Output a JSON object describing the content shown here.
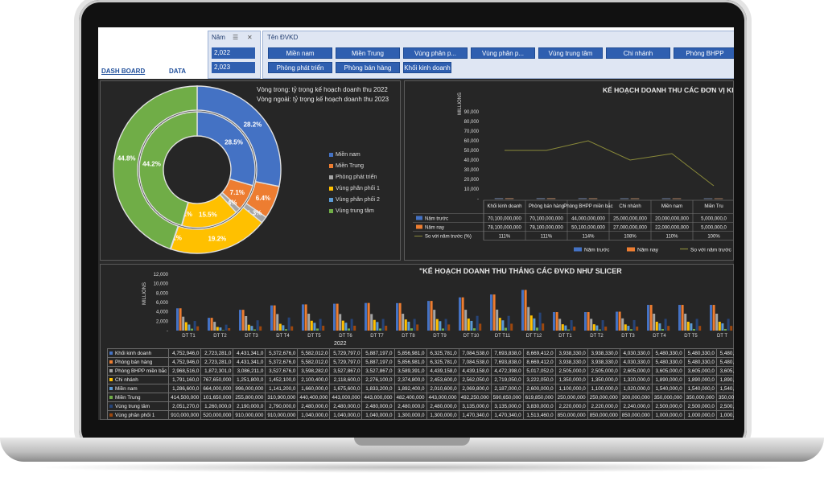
{
  "nav": {
    "dashboard": "DASH BOARD",
    "data": "DATA"
  },
  "year_slicer": {
    "header": "Năm",
    "items": [
      "2,022",
      "2,023"
    ]
  },
  "unit_slicer": {
    "header": "Tên ĐVKD",
    "items": [
      "Miền nam",
      "Miền Trung",
      "Vùng phân p...",
      "Vùng phân p...",
      "Vùng trung tâm",
      "Chi nhánh",
      "Phòng BHPP",
      "Phòng phát triển",
      "Phòng bán hàng",
      "Khối kinh doanh"
    ]
  },
  "pie": {
    "inner_caption": "Vòng trong: tỷ trọng kế hoạch doanh thu 2022",
    "outer_caption": "Vòng ngoài: tỷ trọng kế hoạch doanh thu 2023",
    "legend": [
      {
        "name": "Miền nam",
        "color": "#4472c4"
      },
      {
        "name": "Miền Trung",
        "color": "#ed7d31"
      },
      {
        "name": "Phòng phát triển",
        "color": "#a5a5a5"
      },
      {
        "name": "Vùng phân phối 1",
        "color": "#ffc000"
      },
      {
        "name": "Vùng phân phối 2",
        "color": "#5b9bd5"
      },
      {
        "name": "Vùng trung tâm",
        "color": "#70ad47"
      }
    ],
    "chart_data": {
      "type": "pie",
      "outer_2023": [
        {
          "name": "Miền nam",
          "value": 28.2
        },
        {
          "name": "Miền Trung",
          "value": 6.4
        },
        {
          "name": "Phòng phát triển",
          "value": 1.3
        },
        {
          "name": "Vùng phân phối 1",
          "value": 19.2
        },
        {
          "name": "Vùng phân phối 2",
          "value": 0.1
        },
        {
          "name": "Vùng trung tâm",
          "value": 44.8
        }
      ],
      "inner_2022": [
        {
          "name": "Miền nam",
          "value": 28.5
        },
        {
          "name": "Miền Trung",
          "value": 7.1
        },
        {
          "name": "Phòng phát triển",
          "value": 1.4
        },
        {
          "name": "Vùng phân phối 1",
          "value": 15.5
        },
        {
          "name": "Vùng phân phối 2",
          "value": 0.1
        },
        {
          "name": "Vùng trung tâm",
          "value": 44.2
        }
      ],
      "labels_outer": [
        "28.2%",
        "6.4%",
        "1.3%",
        "19.2%",
        "0.1%",
        "44.8%"
      ],
      "labels_inner": [
        "28.5%",
        "7.1%",
        "1.4%",
        "15.5%",
        "0.1%",
        "44.2%"
      ]
    }
  },
  "bar": {
    "title": "KẾ HOẠCH DOANH THU CÁC ĐƠN VỊ KINH D",
    "ylabel": "MILLIONS",
    "yticks": [
      "90,000",
      "80,000",
      "70,000",
      "60,000",
      "50,000",
      "40,000",
      "30,000",
      "20,000",
      "10,000",
      "-"
    ],
    "legend": [
      "Năm trước",
      "Năm nay",
      "So với năm trước (%)"
    ],
    "chart_data": {
      "type": "bar",
      "categories": [
        "Khối kinh doanh",
        "Phòng bán hàng",
        "Phòng BHPP miền bắc",
        "Chi nhánh",
        "Miền nam",
        "Miền Tru"
      ],
      "series": [
        {
          "name": "Năm trước",
          "values": [
            70100000,
            70100000,
            44000000,
            25000000,
            20000000,
            5000000
          ]
        },
        {
          "name": "Năm nay",
          "values": [
            78100000,
            78100000,
            50100000,
            27000000,
            22000000,
            5000000
          ]
        }
      ],
      "ratio": [
        111,
        111,
        114,
        108,
        110,
        100
      ],
      "ylim": [
        0,
        90000
      ]
    },
    "table": {
      "rows": [
        {
          "label": "Năm trước",
          "cells": [
            "70,100,000,000",
            "70,100,000,000",
            "44,000,000,000",
            "25,000,000,000",
            "20,000,000,000",
            "5,000,000,0"
          ]
        },
        {
          "label": "Năm nay",
          "cells": [
            "78,100,000,000",
            "78,100,000,000",
            "50,100,000,000",
            "27,000,000,000",
            "22,000,000,000",
            "5,000,000,0"
          ]
        },
        {
          "label": "So với năm trước (%)",
          "cells": [
            "111%",
            "111%",
            "114%",
            "108%",
            "110%",
            "100%"
          ]
        }
      ]
    },
    "colors": {
      "prev": "#4472c4",
      "cur": "#ed7d31",
      "line": "#8a8a3a"
    }
  },
  "monthly": {
    "title": "\"KẾ HOẠCH DOANH THU THÁNG CÁC ĐVKD NHƯ SLICER",
    "ylabel": "MILLIONS",
    "yticks": [
      "12,000",
      "10,000",
      "8,000",
      "6,000",
      "4,000",
      "2,000",
      "-"
    ],
    "year_label": "2022",
    "months": [
      "DT T1",
      "DT T2",
      "DT T3",
      "DT T4",
      "DT T5",
      "DT T6",
      "DT T7",
      "DT T8",
      "DT T9",
      "DT T10",
      "DT T11",
      "DT T12",
      "DT T1",
      "DT T2",
      "DT T3",
      "DT T4",
      "DT T5",
      "DT T"
    ],
    "rows": [
      {
        "label": "Khối kinh doanh",
        "color": "#4472c4",
        "cells": [
          "4,752,946,0",
          "2,723,281,0",
          "4,431,341,0",
          "5,372,676,0",
          "5,582,012,0",
          "5,729,797,0",
          "5,887,197,0",
          "5,856,981,0",
          "6,325,781,0",
          "7,084,538,0",
          "7,693,838,0",
          "8,669,412,0",
          "3,938,330,0",
          "3,938,330,0",
          "4,030,330,0",
          "5,480,330,0",
          "5,480,330,0",
          "5,480,"
        ]
      },
      {
        "label": "Phòng bán hàng",
        "color": "#ed7d31",
        "cells": [
          "4,752,946,0",
          "2,723,281,0",
          "4,431,341,0",
          "5,372,676,0",
          "5,582,012,0",
          "5,729,797,0",
          "5,887,197,0",
          "5,856,981,0",
          "6,325,781,0",
          "7,084,538,0",
          "7,693,838,0",
          "8,669,412,0",
          "3,938,330,0",
          "3,938,330,0",
          "4,030,330,0",
          "5,480,330,0",
          "5,480,330,0",
          "5,480,"
        ]
      },
      {
        "label": "Phòng BHPP miền bắc",
        "color": "#a5a5a5",
        "cells": [
          "2,968,516,0",
          "1,872,301,0",
          "3,086,211,0",
          "3,527,676,0",
          "3,598,282,0",
          "3,527,867,0",
          "3,527,867,0",
          "3,589,391,0",
          "4,439,158,0",
          "4,439,158,0",
          "4,472,398,0",
          "5,017,052,0",
          "2,505,000,0",
          "2,505,000,0",
          "2,605,000,0",
          "3,605,000,0",
          "3,605,000,0",
          "3,605,"
        ]
      },
      {
        "label": "Chi nhánh",
        "color": "#ffc000",
        "cells": [
          "1,791,160,0",
          "767,650,000",
          "1,251,800,0",
          "1,452,100,0",
          "2,100,400,0",
          "2,118,600,0",
          "2,276,100,0",
          "2,374,800,0",
          "2,453,600,0",
          "2,562,050,0",
          "2,719,050,0",
          "3,222,050,0",
          "1,350,000,0",
          "1,350,000,0",
          "1,320,000,0",
          "1,890,000,0",
          "1,890,000,0",
          "1,890,"
        ]
      },
      {
        "label": "Miền nam",
        "color": "#5b9bd5",
        "cells": [
          "1,286,600,0",
          "664,000,000",
          "996,000,000",
          "1,141,200,0",
          "1,660,000,0",
          "1,675,600,0",
          "1,833,200,0",
          "1,892,400,0",
          "2,010,600,0",
          "2,069,800,0",
          "2,187,000,0",
          "2,600,000,0",
          "1,100,000,0",
          "1,100,000,0",
          "1,020,000,0",
          "1,540,000,0",
          "1,540,000,0",
          "1,540,"
        ]
      },
      {
        "label": "Miền Trung",
        "color": "#70ad47",
        "cells": [
          "414,500,000",
          "101,650,000",
          "255,800,000",
          "310,900,000",
          "440,400,000",
          "443,000,000",
          "443,000,000",
          "482,400,000",
          "443,000,000",
          "492,250,000",
          "590,650,000",
          "619,850,000",
          "250,000,000",
          "250,000,000",
          "300,000,000",
          "350,000,000",
          "350,000,000",
          "350,00"
        ]
      },
      {
        "label": "Vùng trung tâm",
        "color": "#264478",
        "cells": [
          "2,051,270,0",
          "1,260,000,0",
          "2,190,000,0",
          "2,790,000,0",
          "2,480,000,0",
          "2,480,000,0",
          "2,480,000,0",
          "2,480,000,0",
          "2,480,000,0",
          "3,135,000,0",
          "3,135,000,0",
          "3,830,000,0",
          "2,220,000,0",
          "2,220,000,0",
          "2,240,000,0",
          "2,500,000,0",
          "2,500,000,0",
          "2,500,"
        ]
      },
      {
        "label": "Vùng phân phối 1",
        "color": "#9e480e",
        "cells": [
          "910,000,000",
          "520,000,000",
          "910,000,000",
          "910,000,000",
          "1,040,000,0",
          "1,040,000,0",
          "1,040,000,0",
          "1,300,000,0",
          "1,300,000,0",
          "1,470,340,0",
          "1,470,340,0",
          "1,513,460,0",
          "850,000,000",
          "850,000,000",
          "850,000,000",
          "1,000,000,0",
          "1,000,000,0",
          "1,000,"
        ]
      }
    ],
    "chart_data": {
      "type": "bar",
      "ylim": [
        0,
        12000
      ],
      "series_note": "values in millions, derived from table rows",
      "series": [
        {
          "name": "Khối kinh doanh",
          "values": [
            4753,
            2723,
            4431,
            5373,
            5582,
            5730,
            5887,
            5857,
            6326,
            7085,
            7694,
            8669,
            3938,
            3938,
            4030,
            5480,
            5480,
            5480
          ]
        },
        {
          "name": "Phòng bán hàng",
          "values": [
            4753,
            2723,
            4431,
            5373,
            5582,
            5730,
            5887,
            5857,
            6326,
            7085,
            7694,
            8669,
            3938,
            3938,
            4030,
            5480,
            5480,
            5480
          ]
        },
        {
          "name": "Phòng BHPP miền bắc",
          "values": [
            2969,
            1872,
            3086,
            3528,
            3598,
            3528,
            3528,
            3589,
            4439,
            4439,
            4472,
            5017,
            2505,
            2505,
            2605,
            3605,
            3605,
            3605
          ]
        },
        {
          "name": "Chi nhánh",
          "values": [
            1791,
            768,
            1252,
            1452,
            2100,
            2119,
            2276,
            2375,
            2454,
            2562,
            2719,
            3222,
            1350,
            1350,
            1320,
            1890,
            1890,
            1890
          ]
        },
        {
          "name": "Miền nam",
          "values": [
            1287,
            664,
            996,
            1141,
            1660,
            1676,
            1833,
            1892,
            2011,
            2070,
            2187,
            2600,
            1100,
            1100,
            1020,
            1540,
            1540,
            1540
          ]
        },
        {
          "name": "Miền Trung",
          "values": [
            415,
            102,
            256,
            311,
            440,
            443,
            443,
            482,
            443,
            492,
            591,
            620,
            250,
            250,
            300,
            350,
            350,
            350
          ]
        },
        {
          "name": "Vùng trung tâm",
          "values": [
            2051,
            1260,
            2190,
            2790,
            2480,
            2480,
            2480,
            2480,
            2480,
            3135,
            3135,
            3830,
            2220,
            2220,
            2240,
            2500,
            2500,
            2500
          ]
        },
        {
          "name": "Vùng phân phối 1",
          "values": [
            910,
            520,
            910,
            910,
            1040,
            1040,
            1040,
            1300,
            1300,
            1470,
            1470,
            1513,
            850,
            850,
            850,
            1000,
            1000,
            1000
          ]
        }
      ]
    }
  }
}
